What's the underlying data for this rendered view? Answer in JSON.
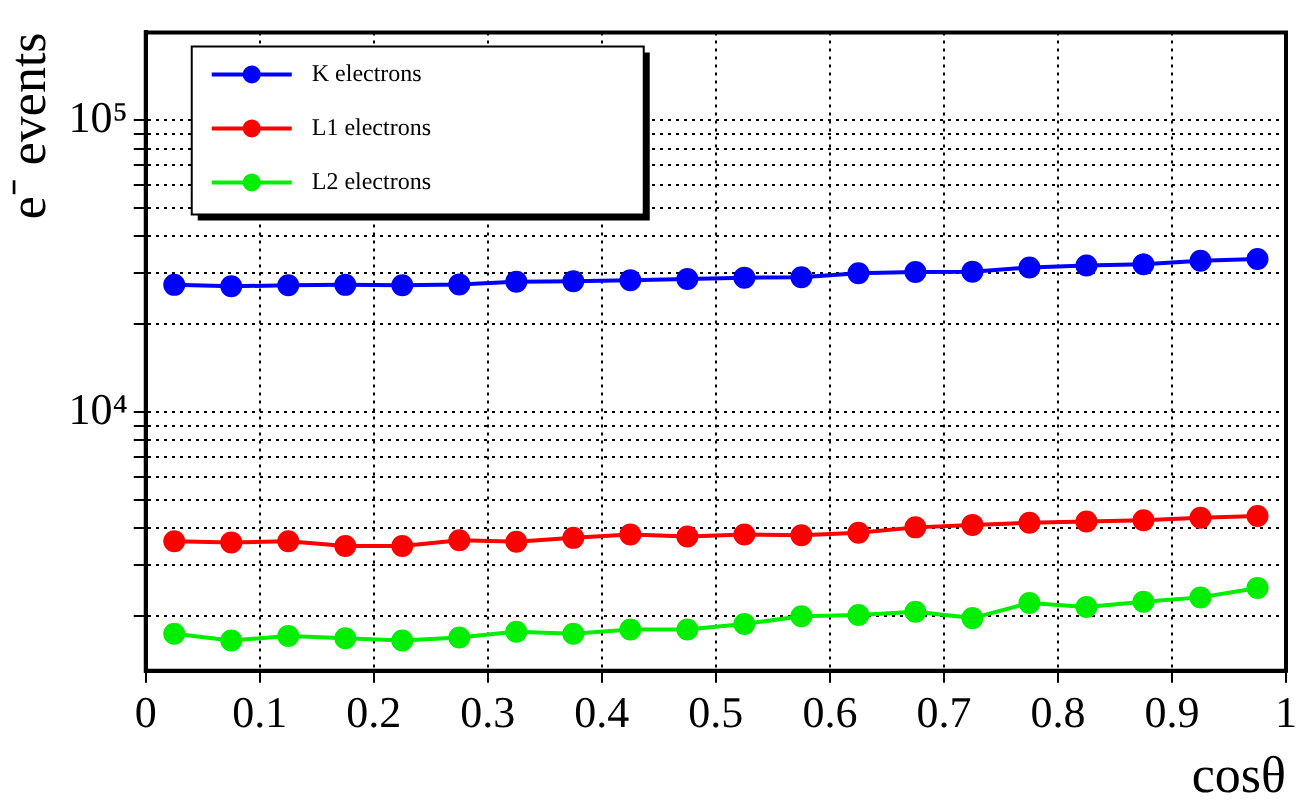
{
  "chart_data": {
    "type": "line",
    "ylabel": "e⁻ events",
    "xlabel": "cosθ",
    "log": "y",
    "grid": true,
    "legend": "top left",
    "marker": "circle",
    "line_style": "solid",
    "x": [
      0.025,
      0.075,
      0.125,
      0.175,
      0.225,
      0.275,
      0.325,
      0.375,
      0.425,
      0.475,
      0.525,
      0.575,
      0.625,
      0.675,
      0.725,
      0.775,
      0.825,
      0.875,
      0.925,
      0.975
    ],
    "xlim": [
      0,
      1
    ],
    "xticks": [
      0,
      0.1,
      0.2,
      0.3,
      0.4,
      0.5,
      0.6,
      0.7,
      0.8,
      0.9,
      1
    ],
    "ylim": [
      1300,
      200000
    ],
    "yticks": [
      {
        "value": 2000,
        "label": null
      },
      {
        "value": 3000,
        "label": null
      },
      {
        "value": 4000,
        "label": null
      },
      {
        "value": 5000,
        "label": null
      },
      {
        "value": 6000,
        "label": null
      },
      {
        "value": 7000,
        "label": null
      },
      {
        "value": 8000,
        "label": null
      },
      {
        "value": 9000,
        "label": null
      },
      {
        "value": 10000,
        "label": "10⁴"
      },
      {
        "value": 20000,
        "label": null
      },
      {
        "value": 30000,
        "label": null
      },
      {
        "value": 40000,
        "label": null
      },
      {
        "value": 50000,
        "label": null
      },
      {
        "value": 60000,
        "label": null
      },
      {
        "value": 70000,
        "label": null
      },
      {
        "value": 80000,
        "label": null
      },
      {
        "value": 90000,
        "label": null
      },
      {
        "value": 100000,
        "label": "10⁵"
      }
    ],
    "series": [
      {
        "name": "K electrons",
        "color": "#0000ff",
        "values": [
          27300,
          27000,
          27200,
          27300,
          27200,
          27400,
          28000,
          28100,
          28300,
          28600,
          28900,
          29000,
          29900,
          30200,
          30300,
          31300,
          31800,
          32100,
          33000,
          33500
        ]
      },
      {
        "name": "L1 electrons",
        "color": "#ff0000",
        "values": [
          3610,
          3580,
          3610,
          3480,
          3480,
          3640,
          3600,
          3710,
          3810,
          3750,
          3810,
          3790,
          3860,
          4030,
          4110,
          4180,
          4220,
          4260,
          4350,
          4410
        ]
      },
      {
        "name": "L2 electrons",
        "color": "#00ee00",
        "values": [
          1740,
          1650,
          1710,
          1680,
          1650,
          1690,
          1770,
          1740,
          1800,
          1800,
          1880,
          2000,
          2020,
          2070,
          1970,
          2220,
          2150,
          2240,
          2320,
          2500
        ]
      }
    ]
  }
}
